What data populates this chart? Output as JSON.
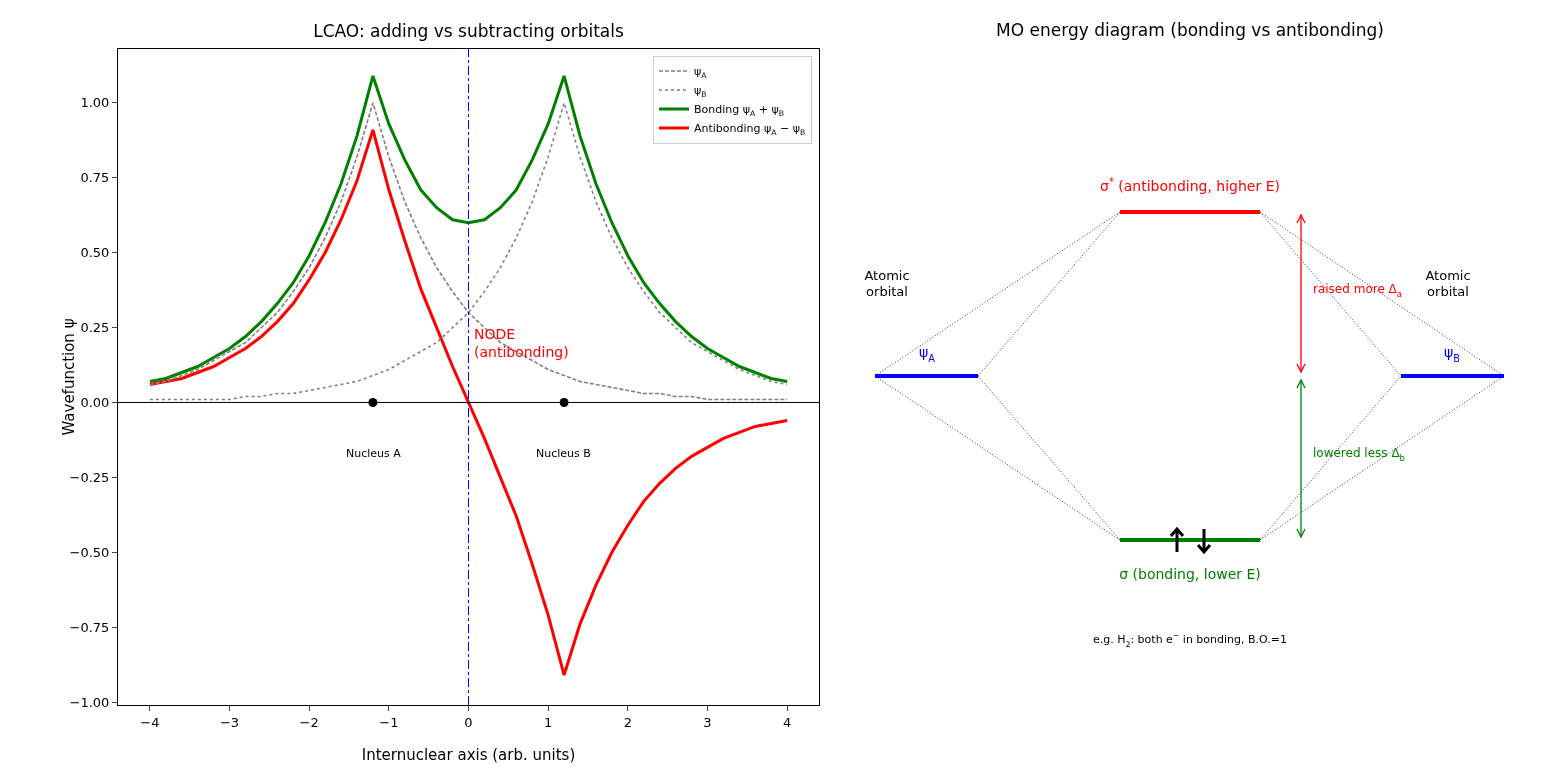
{
  "chart_data": [
    {
      "type": "line",
      "title": "LCAO: adding vs subtracting orbitals",
      "xlabel": "Internuclear axis (arb. units)",
      "ylabel": "Wavefunction ψ",
      "x": [
        -4,
        -3.8,
        -3.6,
        -3.4,
        -3.2,
        -3,
        -2.8,
        -2.6,
        -2.4,
        -2.2,
        -2,
        -1.8,
        -1.6,
        -1.4,
        -1.2,
        -1,
        -0.8,
        -0.6,
        -0.4,
        -0.2,
        0,
        0.2,
        0.4,
        0.6,
        0.8,
        1,
        1.2,
        1.4,
        1.6,
        1.8,
        2,
        2.2,
        2.4,
        2.6,
        2.8,
        3,
        3.2,
        3.4,
        3.6,
        3.8,
        4
      ],
      "xlim": [
        -4.4,
        4.4
      ],
      "ylim": [
        -1.01,
        1.18
      ],
      "xticks": [
        {
          "value": -4,
          "label": "−4"
        },
        {
          "value": -3,
          "label": "−3"
        },
        {
          "value": -2,
          "label": "−2"
        },
        {
          "value": -1,
          "label": "−1"
        },
        0,
        1,
        2,
        3,
        4
      ],
      "yticks": [
        {
          "value": -1,
          "label": "−1.00"
        },
        {
          "value": -0.75,
          "label": "−0.75"
        },
        {
          "value": -0.5,
          "label": "−0.50"
        },
        {
          "value": -0.25,
          "label": "−0.25"
        },
        {
          "value": 0,
          "label": "0.00"
        },
        {
          "value": 0.25,
          "label": "0.25"
        },
        {
          "value": 0.5,
          "label": "0.50"
        },
        {
          "value": 0.75,
          "label": "0.75"
        },
        {
          "value": 1,
          "label": "1.00"
        }
      ],
      "legend": "top right",
      "series": [
        {
          "name": "ψ$_{A}$",
          "type": "line",
          "color": "#808080",
          "line_style": "dashed",
          "values": [
            0.06,
            0.07,
            0.09,
            0.11,
            0.14,
            0.17,
            0.2,
            0.25,
            0.3,
            0.37,
            0.45,
            0.55,
            0.67,
            0.82,
            1,
            0.82,
            0.67,
            0.55,
            0.45,
            0.37,
            0.3,
            0.25,
            0.2,
            0.17,
            0.14,
            0.11,
            0.09,
            0.07,
            0.06,
            0.05,
            0.04,
            0.03,
            0.03,
            0.02,
            0.02,
            0.01,
            0.01,
            0.01,
            0.01,
            0.01,
            0.01
          ]
        },
        {
          "name": "ψ$_{B}$",
          "type": "line",
          "color": "#808080",
          "line_style": "dotted",
          "values": [
            0.01,
            0.01,
            0.01,
            0.01,
            0.01,
            0.01,
            0.02,
            0.02,
            0.03,
            0.03,
            0.04,
            0.05,
            0.06,
            0.07,
            0.09,
            0.11,
            0.14,
            0.17,
            0.2,
            0.25,
            0.3,
            0.37,
            0.45,
            0.55,
            0.67,
            0.82,
            1,
            0.82,
            0.67,
            0.55,
            0.45,
            0.37,
            0.3,
            0.25,
            0.2,
            0.17,
            0.14,
            0.11,
            0.09,
            0.07,
            0.06
          ]
        },
        {
          "name": "Bonding ψ$_{A}$ + ψ$_{B}$",
          "type": "line",
          "color": "#008000",
          "line_style": "solid",
          "values": [
            0.07,
            0.08,
            0.1,
            0.12,
            0.15,
            0.18,
            0.22,
            0.27,
            0.33,
            0.4,
            0.49,
            0.6,
            0.73,
            0.89,
            1.09,
            0.93,
            0.81,
            0.71,
            0.65,
            0.61,
            0.6,
            0.61,
            0.65,
            0.71,
            0.81,
            0.93,
            1.09,
            0.89,
            0.73,
            0.6,
            0.49,
            0.4,
            0.33,
            0.27,
            0.22,
            0.18,
            0.15,
            0.12,
            0.1,
            0.08,
            0.07
          ]
        },
        {
          "name": "Antibonding ψ$_{A}$ − ψ$_{B}$",
          "type": "line",
          "color": "#ff0000",
          "line_style": "solid",
          "values": [
            0.06,
            0.07,
            0.08,
            0.1,
            0.12,
            0.15,
            0.18,
            0.22,
            0.27,
            0.33,
            0.41,
            0.5,
            0.61,
            0.74,
            0.91,
            0.71,
            0.54,
            0.38,
            0.25,
            0.12,
            0,
            -0.12,
            -0.25,
            -0.38,
            -0.54,
            -0.71,
            -0.91,
            -0.74,
            -0.61,
            -0.5,
            -0.41,
            -0.33,
            -0.27,
            -0.22,
            -0.18,
            -0.15,
            -0.12,
            -0.1,
            -0.08,
            -0.07,
            -0.06
          ]
        },
        {
          "type": "scatter",
          "color": "#000000",
          "marker": "circle",
          "x": [
            -1.2,
            1.2
          ],
          "values": [
            0,
            0
          ]
        }
      ],
      "ref_lines": [
        {
          "axis": "y",
          "value": 0,
          "color": "#000000",
          "line_style": "solid"
        },
        {
          "axis": "x",
          "value": 0,
          "color": "#0000ff",
          "line_style": "dashdot"
        }
      ],
      "annotations": [
        "Nucleus A",
        "Nucleus B",
        {
          "text": "NODE\n(antibonding)",
          "x": 0.05,
          "y": 0.2
        }
      ]
    },
    {
      "type": "other",
      "title": "MO energy diagram (bonding vs antibonding)",
      "annotations": [
        "σ$^{*}$ (antibonding, higher E)",
        "Atomic\norbital",
        "Atomic\norbital",
        "ψ$_{A}$",
        "ψ$_{B}$",
        "raised more Δ$_{a}$",
        "lowered less Δ$_{b}$",
        "σ (bonding, lower E)",
        "e.g. H$_{2}$: both e$^{−}$ in bonding, B.O.=1"
      ]
    }
  ]
}
